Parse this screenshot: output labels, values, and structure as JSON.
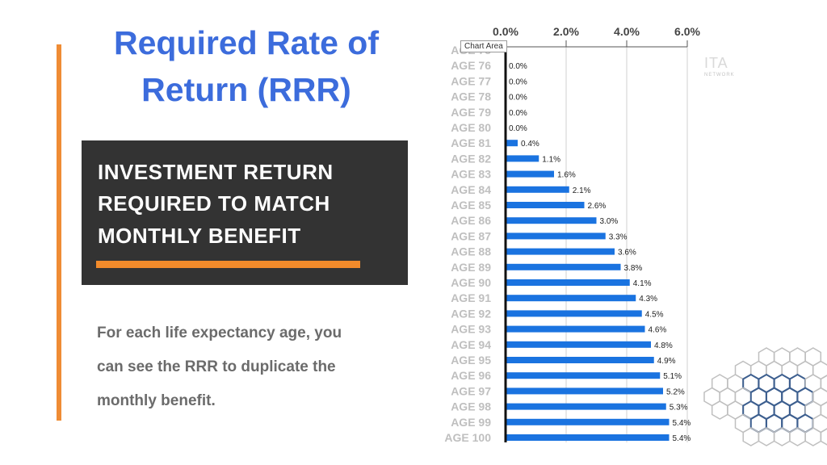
{
  "slide": {
    "title_lines": [
      "Required Rate of",
      "Return (RRR)"
    ],
    "box_lines": [
      "INVESTMENT RETURN",
      "REQUIRED TO MATCH",
      "MONTHLY BENEFIT"
    ],
    "desc_lines": [
      "For each life expectancy age, you",
      "can see the RRR to duplicate the",
      "monthly benefit."
    ],
    "tooltip": "Chart Area",
    "logo_fragment": "ITA",
    "logo_sub": "NETWORK",
    "colors": {
      "title": "#3c6cdc",
      "accent": "#ef8c35",
      "bar": "#1a73e0",
      "box": "#333333"
    }
  },
  "chart_data": {
    "type": "bar",
    "orientation": "horizontal",
    "categories": [
      "AGE 75",
      "AGE 76",
      "AGE 77",
      "AGE 78",
      "AGE 79",
      "AGE 80",
      "AGE 81",
      "AGE 82",
      "AGE 83",
      "AGE 84",
      "AGE 85",
      "AGE 86",
      "AGE 87",
      "AGE 88",
      "AGE 89",
      "AGE 90",
      "AGE 91",
      "AGE 92",
      "AGE 93",
      "AGE 94",
      "AGE 95",
      "AGE 96",
      "AGE 97",
      "AGE 98",
      "AGE 99",
      "AGE 100"
    ],
    "values": [
      0,
      0,
      0,
      0,
      0,
      0,
      0.4,
      1.1,
      1.6,
      2.1,
      2.6,
      3.0,
      3.3,
      3.6,
      3.8,
      4.1,
      4.3,
      4.5,
      4.6,
      4.8,
      4.9,
      5.1,
      5.2,
      5.3,
      5.4,
      5.4
    ],
    "labels": [
      "",
      "0.0%",
      "0.0%",
      "0.0%",
      "0.0%",
      "0.0%",
      "0.4%",
      "1.1%",
      "1.6%",
      "2.1%",
      "2.6%",
      "3.0%",
      "3.3%",
      "3.6%",
      "3.8%",
      "4.1%",
      "4.3%",
      "4.5%",
      "4.6%",
      "4.8%",
      "4.9%",
      "5.1%",
      "5.2%",
      "5.3%",
      "5.4%",
      "5.4%"
    ],
    "xticks": [
      "0.0%",
      "2.0%",
      "4.0%",
      "6.0%"
    ],
    "xtick_values": [
      0,
      2,
      4,
      6
    ],
    "xlim": [
      0,
      6
    ],
    "grid": true,
    "title": "",
    "xlabel": "",
    "ylabel": ""
  }
}
